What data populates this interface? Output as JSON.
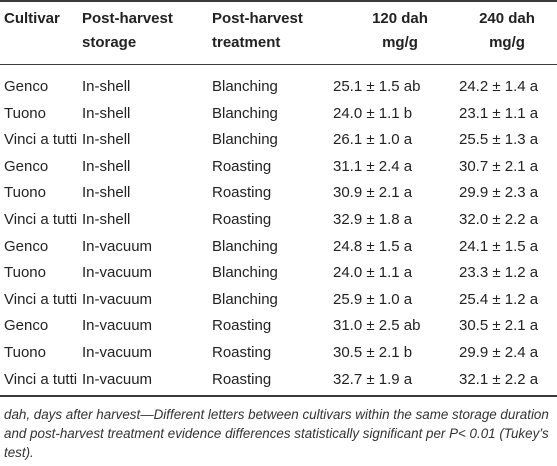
{
  "header": {
    "cultivar": "Cultivar",
    "storage_line1": "Post-harvest",
    "storage_line2": "storage",
    "treatment_line1": "Post-harvest",
    "treatment_line2": "treatment",
    "d120_line1": "120 dah",
    "d120_line2": "mg/g",
    "d240_line1": "240 dah",
    "d240_line2": "mg/g"
  },
  "rows": [
    {
      "cultivar": "Genco",
      "storage": "In-shell",
      "treatment": "Blanching",
      "d120": "25.1 ± 1.5 ab",
      "d240": "24.2 ± 1.4 a"
    },
    {
      "cultivar": "Tuono",
      "storage": "In-shell",
      "treatment": "Blanching",
      "d120": "24.0 ± 1.1 b",
      "d240": "23.1 ± 1.1 a"
    },
    {
      "cultivar": "Vinci a tutti",
      "storage": "In-shell",
      "treatment": "Blanching",
      "d120": "26.1 ± 1.0 a",
      "d240": "25.5 ± 1.3 a"
    },
    {
      "cultivar": "Genco",
      "storage": "In-shell",
      "treatment": "Roasting",
      "d120": "31.1 ± 2.4 a",
      "d240": "30.7 ± 2.1 a"
    },
    {
      "cultivar": "Tuono",
      "storage": "In-shell",
      "treatment": "Roasting",
      "d120": "30.9 ± 2.1 a",
      "d240": "29.9 ± 2.3 a"
    },
    {
      "cultivar": "Vinci a tutti",
      "storage": "In-shell",
      "treatment": "Roasting",
      "d120": "32.9 ± 1.8 a",
      "d240": "32.0 ± 2.2 a"
    },
    {
      "cultivar": "Genco",
      "storage": "In-vacuum",
      "treatment": "Blanching",
      "d120": "24.8 ± 1.5 a",
      "d240": "24.1 ± 1.5 a"
    },
    {
      "cultivar": "Tuono",
      "storage": "In-vacuum",
      "treatment": "Blanching",
      "d120": "24.0 ± 1.1 a",
      "d240": "23.3 ± 1.2 a"
    },
    {
      "cultivar": "Vinci a tutti",
      "storage": "In-vacuum",
      "treatment": "Blanching",
      "d120": "25.9 ± 1.0 a",
      "d240": "25.4 ± 1.2 a"
    },
    {
      "cultivar": "Genco",
      "storage": "In-vacuum",
      "treatment": "Roasting",
      "d120": "31.0 ± 2.5 ab",
      "d240": "30.5 ± 2.1 a"
    },
    {
      "cultivar": "Tuono",
      "storage": "In-vacuum",
      "treatment": "Roasting",
      "d120": "30.5 ± 2.1 b",
      "d240": "29.9 ± 2.4 a"
    },
    {
      "cultivar": "Vinci a tutti",
      "storage": "In-vacuum",
      "treatment": "Roasting",
      "d120": "32.7 ± 1.9 a",
      "d240": "32.1 ± 2.2 a"
    }
  ],
  "footnote": "dah, days after harvest—Different letters between cultivars within the same storage duration and post-harvest treatment evidence differences statistically significant per P< 0.01 (Tukey’s test)."
}
